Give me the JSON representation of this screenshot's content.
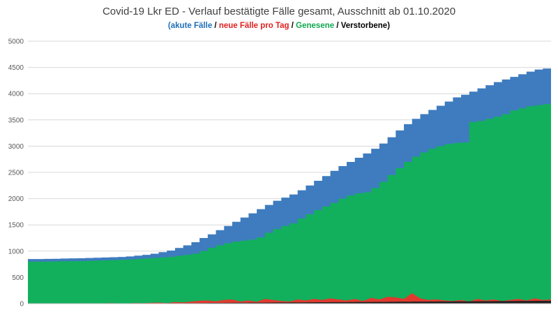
{
  "chart_data": {
    "type": "area",
    "title": "Covid-19 Lkr ED - Verlauf bestätigte Fälle gesamt, Ausschnitt ab 01.10.2020",
    "subtitle": {
      "open": "(",
      "parts": [
        {
          "text": "akute Fälle",
          "color": "#1f6fb8"
        },
        {
          "text": " / ",
          "color": "#000000"
        },
        {
          "text": "neue Fälle pro Tag",
          "color": "#e02020"
        },
        {
          "text": " / ",
          "color": "#000000"
        },
        {
          "text": "Genesene",
          "color": "#10a850"
        },
        {
          "text": " / ",
          "color": "#000000"
        },
        {
          "text": "Verstorbene",
          "color": "#000000"
        }
      ],
      "close": ")"
    },
    "xlabel": "",
    "ylabel": "",
    "ylim": [
      0,
      5000
    ],
    "yticks": [
      "0",
      "500",
      "1000",
      "1500",
      "2000",
      "2500",
      "3000",
      "3500",
      "4000",
      "4500",
      "5000"
    ],
    "grid": true,
    "colors": {
      "total": "#3e7cbf",
      "recovered": "#12b05c",
      "new": "#e03a2f",
      "deaths": "#222222",
      "grid": "#d9d9d9"
    },
    "series": [
      {
        "key": "total",
        "values": [
          850,
          850,
          852,
          855,
          860,
          862,
          865,
          870,
          875,
          880,
          885,
          890,
          900,
          915,
          930,
          950,
          980,
          1010,
          1060,
          1110,
          1170,
          1250,
          1320,
          1400,
          1480,
          1560,
          1640,
          1720,
          1800,
          1880,
          1960,
          2020,
          2080,
          2160,
          2250,
          2340,
          2430,
          2530,
          2620,
          2700,
          2780,
          2860,
          2950,
          3050,
          3170,
          3300,
          3420,
          3520,
          3610,
          3690,
          3770,
          3850,
          3930,
          3980,
          4040,
          4100,
          4160,
          4220,
          4270,
          4320,
          4370,
          4420,
          4460,
          4480,
          4520
        ]
      },
      {
        "key": "recovered",
        "values": [
          800,
          800,
          802,
          805,
          808,
          810,
          812,
          815,
          820,
          825,
          830,
          835,
          840,
          850,
          860,
          870,
          880,
          890,
          910,
          930,
          950,
          1000,
          1060,
          1110,
          1150,
          1180,
          1200,
          1220,
          1260,
          1350,
          1420,
          1480,
          1530,
          1620,
          1700,
          1780,
          1850,
          1920,
          2000,
          2060,
          2100,
          2120,
          2200,
          2320,
          2450,
          2580,
          2700,
          2800,
          2880,
          2950,
          3000,
          3040,
          3060,
          3070,
          3460,
          3480,
          3520,
          3560,
          3610,
          3680,
          3720,
          3760,
          3780,
          3800,
          3920
        ]
      },
      {
        "key": "new",
        "values": [
          4,
          3,
          5,
          2,
          6,
          3,
          4,
          8,
          5,
          3,
          10,
          6,
          4,
          12,
          8,
          15,
          20,
          10,
          30,
          25,
          40,
          55,
          60,
          45,
          70,
          80,
          40,
          60,
          35,
          90,
          70,
          50,
          40,
          80,
          60,
          90,
          70,
          100,
          80,
          60,
          90,
          50,
          110,
          80,
          130,
          120,
          90,
          200,
          100,
          70,
          80,
          60,
          50,
          70,
          40,
          90,
          60,
          80,
          50,
          70,
          90,
          60,
          100,
          70,
          80
        ]
      },
      {
        "key": "deaths",
        "values": [
          2,
          2,
          2,
          2,
          3,
          3,
          3,
          3,
          4,
          4,
          5,
          5,
          5,
          6,
          6,
          7,
          7,
          8,
          9,
          10,
          10,
          12,
          13,
          14,
          15,
          16,
          17,
          18,
          19,
          20,
          21,
          22,
          23,
          24,
          25,
          26,
          27,
          28,
          29,
          30,
          31,
          32,
          33,
          34,
          35,
          36,
          37,
          38,
          39,
          40,
          41,
          42,
          43,
          44,
          45,
          46,
          47,
          48,
          49,
          50,
          51,
          52,
          53,
          54,
          55
        ]
      }
    ]
  }
}
